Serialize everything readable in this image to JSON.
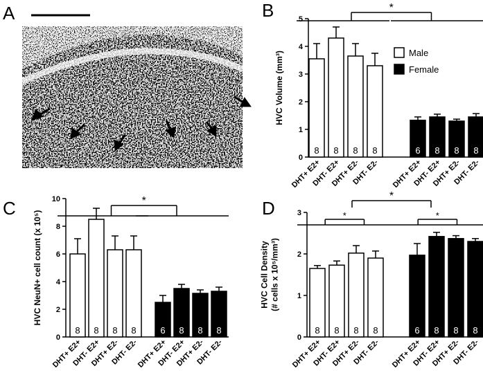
{
  "panel_a": {
    "label": "A"
  },
  "chart_data": [
    {
      "type": "bar",
      "label": "B",
      "ylabel": [
        "HVC Volume (mm³)"
      ],
      "categories": [
        "DHT+ E2+",
        "DHT- E2+",
        "DHT+ E2-",
        "DHT- E2-"
      ],
      "ylim": [
        0,
        5
      ],
      "yticks": [
        0,
        1,
        2,
        3,
        4,
        5
      ],
      "legend": true,
      "series": [
        {
          "name": "Male",
          "color": "#ffffff",
          "values": [
            3.55,
            4.3,
            3.65,
            3.3
          ],
          "errors": [
            0.55,
            0.4,
            0.45,
            0.45
          ],
          "n": [
            8,
            8,
            8,
            8
          ]
        },
        {
          "name": "Female",
          "color": "#000000",
          "values": [
            1.33,
            1.45,
            1.3,
            1.45
          ],
          "errors": [
            0.12,
            0.1,
            0.07,
            0.12
          ],
          "n": [
            6,
            8,
            8,
            8
          ]
        }
      ],
      "annotations": [
        "*"
      ]
    },
    {
      "type": "bar",
      "label": "C",
      "ylabel": [
        "HVC NeuN+ cell count (x 10⁵)"
      ],
      "categories": [
        "DHT+ E2+",
        "DHT- E2+",
        "DHT+ E2-",
        "DHT- E2-"
      ],
      "ylim": [
        0,
        10
      ],
      "yticks": [
        0,
        2,
        4,
        6,
        8,
        10
      ],
      "legend": false,
      "series": [
        {
          "color": "#ffffff",
          "values": [
            6.0,
            8.5,
            6.3,
            6.3
          ],
          "errors": [
            1.1,
            0.8,
            1.0,
            1.0
          ],
          "n": [
            8,
            8,
            8,
            8
          ]
        },
        {
          "color": "#000000",
          "values": [
            2.5,
            3.5,
            3.15,
            3.3
          ],
          "errors": [
            0.5,
            0.3,
            0.25,
            0.3
          ],
          "n": [
            6,
            8,
            8,
            8
          ]
        }
      ],
      "annotations": [
        "*"
      ]
    },
    {
      "type": "bar",
      "label": "D",
      "ylabel": [
        "HVC Cell Density",
        "(# cells x 10⁵/mm³)"
      ],
      "categories": [
        "DHT+ E2+",
        "DHT- E2+",
        "DHT+ E2-",
        "DHT- E2-"
      ],
      "ylim": [
        0,
        3
      ],
      "yticks": [
        0,
        1,
        2,
        3
      ],
      "legend": false,
      "series": [
        {
          "color": "#ffffff",
          "values": [
            1.65,
            1.73,
            2.02,
            1.9
          ],
          "errors": [
            0.07,
            0.1,
            0.18,
            0.17
          ],
          "n": [
            8,
            8,
            8,
            8
          ]
        },
        {
          "color": "#000000",
          "values": [
            1.97,
            2.42,
            2.37,
            2.3
          ],
          "errors": [
            0.28,
            0.1,
            0.07,
            0.07
          ],
          "n": [
            6,
            8,
            8,
            8
          ]
        }
      ],
      "annotations": [
        "*",
        "*",
        "*"
      ]
    }
  ]
}
